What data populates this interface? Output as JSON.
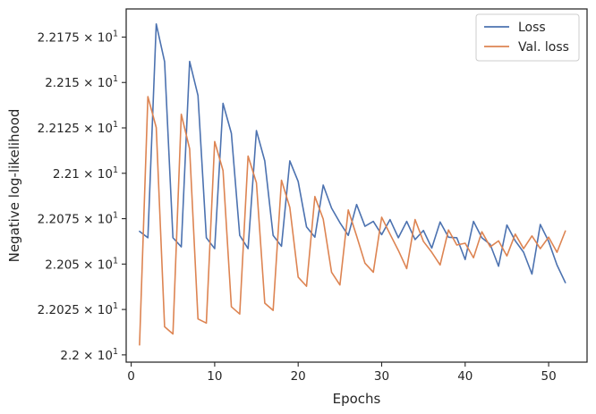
{
  "chart_data": {
    "type": "line",
    "xlabel": "Epochs",
    "ylabel": "Negative log-likelihood",
    "xlim": [
      -0.6,
      54.6
    ],
    "ylim": [
      21.996,
      22.1905
    ],
    "xticks": [
      {
        "value": 0,
        "label": "0"
      },
      {
        "value": 10,
        "label": "10"
      },
      {
        "value": 20,
        "label": "20"
      },
      {
        "value": 30,
        "label": "30"
      },
      {
        "value": 40,
        "label": "40"
      },
      {
        "value": 50,
        "label": "50"
      }
    ],
    "yticks": [
      {
        "value": 22.0,
        "mantissa": "2.2",
        "exp": "1"
      },
      {
        "value": 22.025,
        "mantissa": "2.2025",
        "exp": "1"
      },
      {
        "value": 22.05,
        "mantissa": "2.205",
        "exp": "1"
      },
      {
        "value": 22.075,
        "mantissa": "2.2075",
        "exp": "1"
      },
      {
        "value": 22.1,
        "mantissa": "2.21",
        "exp": "1"
      },
      {
        "value": 22.125,
        "mantissa": "2.2125",
        "exp": "1"
      },
      {
        "value": 22.15,
        "mantissa": "2.215",
        "exp": "1"
      },
      {
        "value": 22.175,
        "mantissa": "2.2175",
        "exp": "1"
      }
    ],
    "times_symbol": "×",
    "base": "10",
    "legend_position": "top-right",
    "grid": false,
    "x": [
      1,
      2,
      3,
      4,
      5,
      6,
      7,
      8,
      9,
      10,
      11,
      12,
      13,
      14,
      15,
      16,
      17,
      18,
      19,
      20,
      21,
      22,
      23,
      24,
      25,
      26,
      27,
      28,
      29,
      30,
      31,
      32,
      33,
      34,
      35,
      36,
      37,
      38,
      39,
      40,
      41,
      42,
      43,
      44,
      45,
      46,
      47,
      48,
      49,
      50,
      51,
      52
    ],
    "series": [
      {
        "name": "Loss",
        "color": "#4c72b0",
        "values": [
          22.068,
          22.0645,
          22.1822,
          22.1615,
          22.0645,
          22.0595,
          22.1616,
          22.1428,
          22.0645,
          22.0585,
          22.1385,
          22.122,
          22.0658,
          22.0585,
          22.1235,
          22.1068,
          22.0658,
          22.0598,
          22.1068,
          22.0955,
          22.0705,
          22.0648,
          22.0935,
          22.0808,
          22.0728,
          22.0658,
          22.0828,
          22.0708,
          22.0735,
          22.0662,
          22.0745,
          22.0645,
          22.0735,
          22.0635,
          22.0685,
          22.0588,
          22.0732,
          22.0648,
          22.0645,
          22.0525,
          22.0735,
          22.0645,
          22.0608,
          22.0488,
          22.0715,
          22.0628,
          22.0565,
          22.0445,
          22.0718,
          22.0625,
          22.0495,
          22.0398
        ]
      },
      {
        "name": "Val. loss",
        "color": "#dd8452",
        "values": [
          22.0055,
          22.1422,
          22.1252,
          22.0155,
          22.0115,
          22.1325,
          22.1135,
          22.0198,
          22.0175,
          22.1175,
          22.1015,
          22.0265,
          22.0225,
          22.1095,
          22.0948,
          22.0285,
          22.0245,
          22.0962,
          22.0812,
          22.0428,
          22.0378,
          22.0872,
          22.0748,
          22.0455,
          22.0385,
          22.0798,
          22.0655,
          22.0505,
          22.0455,
          22.0758,
          22.0665,
          22.0575,
          22.0475,
          22.0745,
          22.0625,
          22.0565,
          22.0495,
          22.0688,
          22.0605,
          22.0615,
          22.0535,
          22.0678,
          22.0595,
          22.0628,
          22.0545,
          22.0665,
          22.0585,
          22.0655,
          22.0585,
          22.0648,
          22.0565,
          22.0682
        ]
      }
    ]
  }
}
